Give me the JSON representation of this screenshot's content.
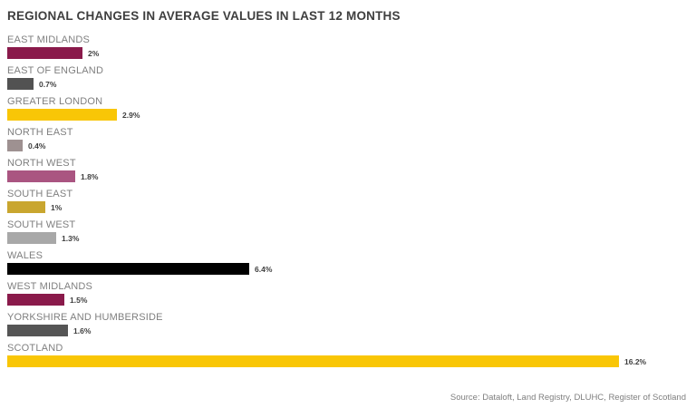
{
  "chart_data": {
    "type": "bar",
    "orientation": "horizontal",
    "title": "REGIONAL CHANGES IN AVERAGE VALUES IN LAST 12 MONTHS",
    "categories": [
      "EAST MIDLANDS",
      "EAST OF ENGLAND",
      "GREATER LONDON",
      "NORTH EAST",
      "NORTH WEST",
      "SOUTH EAST",
      "SOUTH WEST",
      "WALES",
      "WEST MIDLANDS",
      "YORKSHIRE AND HUMBERSIDE",
      "SCOTLAND"
    ],
    "values": [
      2,
      0.7,
      2.9,
      0.4,
      1.8,
      1,
      1.3,
      6.4,
      1.5,
      1.6,
      16.2
    ],
    "value_labels": [
      "2%",
      "0.7%",
      "2.9%",
      "0.4%",
      "1.8%",
      "1%",
      "1.3%",
      "6.4%",
      "1.5%",
      "1.6%",
      "16.2%"
    ],
    "bar_colors": [
      "#8A1A4B",
      "#525252",
      "#F9C606",
      "#9E9191",
      "#AA5581",
      "#C9A62F",
      "#A8A8A8",
      "#000000",
      "#8A1A4B",
      "#555555",
      "#F9C606"
    ],
    "xlim": [
      0,
      16.2
    ],
    "grid": false,
    "legend": false,
    "source": "Source: Dataloft, Land Registry, DLUHC, Register of Scotland"
  },
  "colors": {
    "background": "#FFFFFF",
    "title_text": "#3E3E3E",
    "category_label_text": "#7F7F7F",
    "value_label_text": "#3E3E3E",
    "source_text": "#7F7F7F"
  }
}
